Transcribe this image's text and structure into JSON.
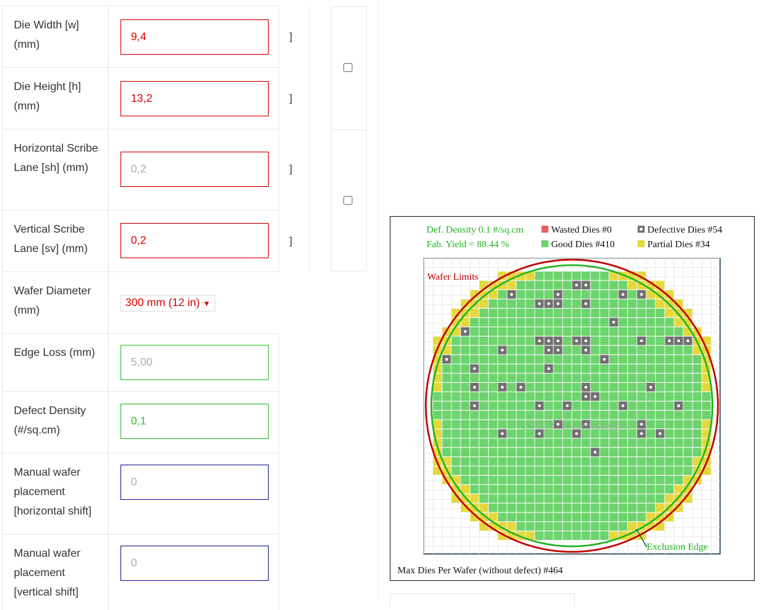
{
  "form": {
    "die_width": {
      "label": "Die Width [w] (mm)",
      "value": "9,4",
      "unit": "]"
    },
    "die_height": {
      "label": "Die Height [h] (mm)",
      "value": "13,2",
      "unit": "]"
    },
    "h_scribe": {
      "label": "Horizontal Scribe Lane [sh] (mm)",
      "placeholder": "0,2",
      "unit": "]"
    },
    "v_scribe": {
      "label": "Vertical Scribe Lane [sv] (mm)",
      "value": "0,2",
      "unit": "]"
    },
    "wafer_diameter": {
      "label": "Wafer Diameter (mm)",
      "selected": "300 mm (12 in)"
    },
    "edge_loss": {
      "label": "Edge Loss (mm)",
      "placeholder": "5,00"
    },
    "defect_density": {
      "label": "Defect Density (#/sq.cm)",
      "value": "0,1"
    },
    "h_shift": {
      "label": "Manual wafer placement [horizontal shift]",
      "placeholder": "0"
    },
    "v_shift": {
      "label": "Manual wafer placement [vertical shift]",
      "placeholder": "0"
    }
  },
  "chart_data": {
    "type": "wafer-map",
    "stats": {
      "def_density": "Def. Density 0.1 #/sq.cm",
      "fab_yield": "Fab. Yield = 88.44 %"
    },
    "legend": [
      {
        "name": "Wasted Dies",
        "count": "#0",
        "color": "#e8605a"
      },
      {
        "name": "Defective Dies",
        "count": "#54",
        "color": "#707070"
      },
      {
        "name": "Good Dies",
        "count": "#410",
        "color": "#6cd46c"
      },
      {
        "name": "Partial Dies",
        "count": "#34",
        "color": "#e5d83c"
      }
    ],
    "labels": {
      "wafer_limits": "Wafer Limits",
      "exclusion_edge": "Exclusion Edge",
      "watermark": "CALY Technologies"
    },
    "max_dies": "Max Dies Per Wafer (without defect) #464",
    "grid": {
      "cols": 30,
      "rows": 29
    },
    "defective_cells": [
      [
        15,
        1
      ],
      [
        16,
        1
      ],
      [
        8,
        2
      ],
      [
        13,
        2
      ],
      [
        20,
        2
      ],
      [
        22,
        2
      ],
      [
        5,
        3
      ],
      [
        11,
        3
      ],
      [
        12,
        3
      ],
      [
        13,
        3
      ],
      [
        16,
        3
      ],
      [
        24,
        3
      ],
      [
        4,
        4
      ],
      [
        19,
        5
      ],
      [
        3,
        6
      ],
      [
        11,
        7
      ],
      [
        12,
        7
      ],
      [
        13,
        7
      ],
      [
        15,
        7
      ],
      [
        16,
        7
      ],
      [
        22,
        7
      ],
      [
        25,
        7
      ],
      [
        26,
        7
      ],
      [
        27,
        7
      ],
      [
        1,
        7
      ],
      [
        7,
        8
      ],
      [
        12,
        8
      ],
      [
        13,
        8
      ],
      [
        16,
        8
      ],
      [
        1,
        9
      ],
      [
        18,
        9
      ],
      [
        4,
        10
      ],
      [
        12,
        10
      ],
      [
        4,
        12
      ],
      [
        7,
        12
      ],
      [
        9,
        12
      ],
      [
        16,
        12
      ],
      [
        23,
        12
      ],
      [
        16,
        13
      ],
      [
        17,
        13
      ],
      [
        4,
        14
      ],
      [
        11,
        14
      ],
      [
        14,
        14
      ],
      [
        20,
        14
      ],
      [
        26,
        14
      ],
      [
        13,
        16
      ],
      [
        16,
        16
      ],
      [
        22,
        16
      ],
      [
        7,
        17
      ],
      [
        11,
        17
      ],
      [
        15,
        17
      ],
      [
        22,
        17
      ],
      [
        24,
        17
      ],
      [
        17,
        19
      ]
    ]
  }
}
